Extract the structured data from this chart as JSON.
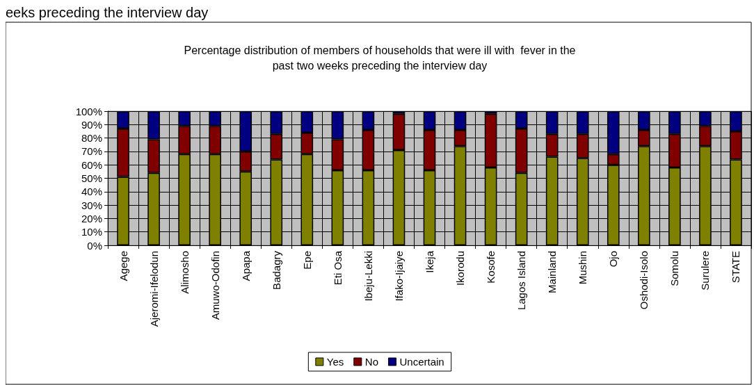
{
  "chart_data": {
    "type": "bar",
    "stacked": true,
    "title": "Percentage distribution of members of households that were ill with  fever in the\npast two weeks preceding the interview day",
    "annotations": [
      "eeks preceding the interview day"
    ],
    "categories": [
      "Agege",
      "Ajeromi-Ifelodun",
      "Alimosho",
      "Amuwo-Odofin",
      "Apapa",
      "Badagry",
      "Epe",
      "Eti Osa",
      "Ibeju-Lekki",
      "Ifako-Ijaiye",
      "Ikeja",
      "Ikorodu",
      "Kosofe",
      "Lagos Island",
      "Mainland",
      "Mushin",
      "Ojo",
      "Oshodi-Isolo",
      "Somolu",
      "Surulere",
      "STATE"
    ],
    "series": [
      {
        "name": "Yes",
        "color": "#808000",
        "values": [
          51,
          54,
          68,
          68,
          55,
          64,
          68,
          56,
          56,
          71,
          56,
          74,
          58,
          54,
          66,
          65,
          60,
          74,
          58,
          74,
          64
        ]
      },
      {
        "name": "No",
        "color": "#800000",
        "values": [
          36,
          25,
          21,
          21,
          15,
          19,
          16,
          23,
          30,
          27,
          30,
          12,
          40,
          33,
          17,
          18,
          8,
          12,
          25,
          15,
          21
        ]
      },
      {
        "name": "Uncertain",
        "color": "#000080",
        "values": [
          13,
          21,
          11,
          11,
          30,
          17,
          16,
          21,
          14,
          2,
          14,
          14,
          2,
          13,
          17,
          17,
          32,
          14,
          17,
          11,
          15
        ]
      }
    ],
    "ylim": [
      0,
      100
    ],
    "yticks": [
      {
        "value": 0,
        "label": "0%"
      },
      {
        "value": 10,
        "label": "10%"
      },
      {
        "value": 20,
        "label": "20%"
      },
      {
        "value": 30,
        "label": "30%"
      },
      {
        "value": 40,
        "label": "40%"
      },
      {
        "value": 50,
        "label": "50%"
      },
      {
        "value": 60,
        "label": "60%"
      },
      {
        "value": 70,
        "label": "70%"
      },
      {
        "value": 80,
        "label": "80%"
      },
      {
        "value": 90,
        "label": "90%"
      },
      {
        "value": 100,
        "label": "100%"
      }
    ],
    "grid": true,
    "legend": "bottom"
  }
}
